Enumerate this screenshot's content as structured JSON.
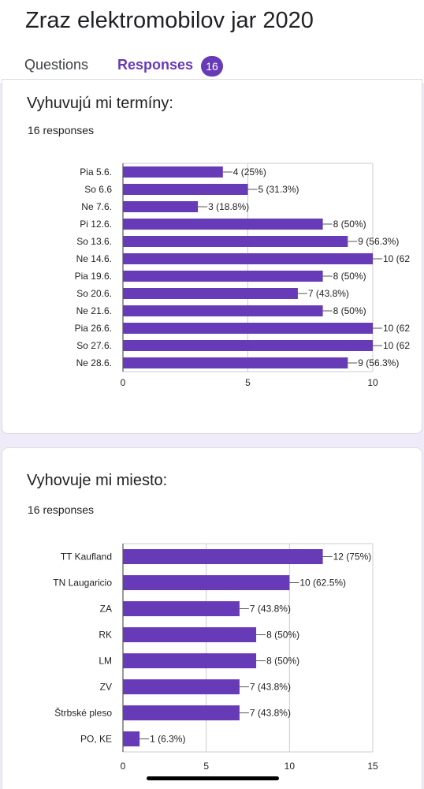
{
  "form_title": "Zraz elektromobilov jar 2020",
  "tabs": [
    {
      "label": "Questions"
    },
    {
      "label": "Responses",
      "badge": "16",
      "active": true
    }
  ],
  "colors": {
    "accent": "#673ab7",
    "bar": "#673ab7"
  },
  "questions": [
    {
      "title": "Vyhuvujú mi termíny:",
      "responses_text": "16 responses",
      "chart_data": {
        "type": "bar",
        "orientation": "horizontal",
        "categories": [
          "Pia 5.6.",
          "So 6.6",
          "Ne 7.6.",
          "Pi 12.6.",
          "So 13.6.",
          "Ne 14.6.",
          "Pia 19.6.",
          "So 20.6.",
          "Ne 21.6.",
          "Pia 26.6.",
          "So 27.6.",
          "Ne 28.6."
        ],
        "values": [
          4,
          5,
          3,
          8,
          9,
          10,
          8,
          7,
          8,
          10,
          10,
          9
        ],
        "value_labels": [
          "4 (25%)",
          "5 (31.3%)",
          "3 (18.8%)",
          "8 (50%)",
          "9 (56.3%)",
          "10 (62",
          "8 (50%)",
          "7 (43.8%)",
          "8 (50%)",
          "10 (62",
          "10 (62",
          "9 (56.3%)"
        ],
        "xticks": [
          0,
          5,
          10
        ],
        "xlim": [
          0,
          10
        ],
        "grid": true
      }
    },
    {
      "title": "Vyhovuje mi miesto:",
      "responses_text": "16 responses",
      "chart_data": {
        "type": "bar",
        "orientation": "horizontal",
        "categories": [
          "TT Kaufland",
          "TN Laugaricio",
          "ZA",
          "RK",
          "LM",
          "ZV",
          "Štrbské pleso",
          "PO, KE"
        ],
        "values": [
          12,
          10,
          7,
          8,
          8,
          7,
          7,
          1
        ],
        "value_labels": [
          "12 (75%)",
          "10 (62.5%)",
          "7 (43.8%)",
          "8 (50%)",
          "8 (50%)",
          "7 (43.8%)",
          "7 (43.8%)",
          "1 (6.3%)"
        ],
        "xticks": [
          0,
          5,
          10,
          15
        ],
        "xlim": [
          0,
          15
        ],
        "grid": true
      }
    }
  ]
}
